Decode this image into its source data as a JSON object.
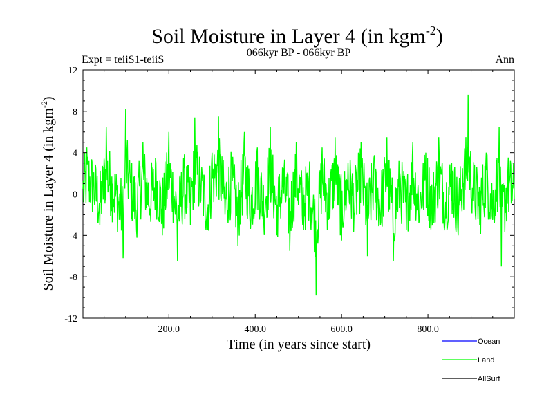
{
  "chart_data": {
    "type": "line",
    "title": "Soil Moisture in Layer 4 (in kgm",
    "title_sup": "-2",
    "title_close": ")",
    "subtitle_left": "Expt = teiiS1-teiiS",
    "subtitle_center": "066kyr BP - 066kyr BP",
    "subtitle_right": "Ann",
    "xlabel": "Time (in years since start)",
    "ylabel": "Soil Moisture in Layer 4 (in kgm",
    "ylabel_sup": "-2",
    "ylabel_close": ")",
    "xlim": [
      1,
      1000
    ],
    "ylim": [
      -12,
      12
    ],
    "xticks": [
      200,
      400,
      600,
      800
    ],
    "xtick_labels": [
      "200.0",
      "400.0",
      "600.0",
      "800.0"
    ],
    "yticks": [
      -12,
      -8,
      -4,
      0,
      4,
      8,
      12
    ],
    "ytick_labels": [
      "-12",
      "-8",
      "-4",
      "0",
      "4",
      "8",
      "12"
    ],
    "zero_line": true,
    "grid": false,
    "legend_position": "bottom-right",
    "series": [
      {
        "name": "Ocean",
        "color": "#0000ff",
        "values": []
      },
      {
        "name": "Land",
        "color": "#00ff00",
        "x": [
          1,
          10,
          25,
          40,
          55,
          70,
          85,
          94,
          100,
          110,
          125,
          140,
          155,
          170,
          185,
          200,
          215,
          220,
          235,
          250,
          260,
          275,
          290,
          300,
          315,
          330,
          345,
          360,
          375,
          390,
          405,
          420,
          435,
          450,
          465,
          480,
          495,
          510,
          525,
          541,
          555,
          570,
          585,
          600,
          615,
          630,
          645,
          660,
          675,
          690,
          705,
          720,
          735,
          750,
          765,
          780,
          795,
          810,
          825,
          840,
          855,
          870,
          880,
          893,
          905,
          920,
          935,
          950,
          965,
          970,
          985,
          1000
        ],
        "values": [
          0.5,
          4.5,
          2.0,
          -3.0,
          6.5,
          1.0,
          -2.5,
          -6.2,
          8.2,
          2.0,
          -3.5,
          5.0,
          -1.5,
          3.0,
          -4.0,
          6.0,
          -2.0,
          -6.5,
          2.5,
          -3.0,
          7.4,
          1.0,
          -3.5,
          4.0,
          7.5,
          -2.0,
          3.0,
          -5.0,
          6.0,
          -2.5,
          4.5,
          -3.0,
          6.5,
          -4.0,
          2.5,
          -5.5,
          5.0,
          -3.0,
          1.5,
          -9.8,
          4.5,
          -2.5,
          5.5,
          -4.5,
          3.0,
          -2.0,
          5.0,
          -6.0,
          3.5,
          -3.0,
          5.5,
          -6.5,
          2.0,
          -3.5,
          5.0,
          -2.5,
          4.0,
          -3.0,
          5.5,
          -2.0,
          3.0,
          -4.0,
          2.5,
          9.6,
          1.0,
          -3.0,
          4.0,
          -2.5,
          6.5,
          -7.0,
          2.0,
          -0.5
        ]
      },
      {
        "name": "AllSurf",
        "color": "#000000",
        "values": []
      }
    ]
  }
}
